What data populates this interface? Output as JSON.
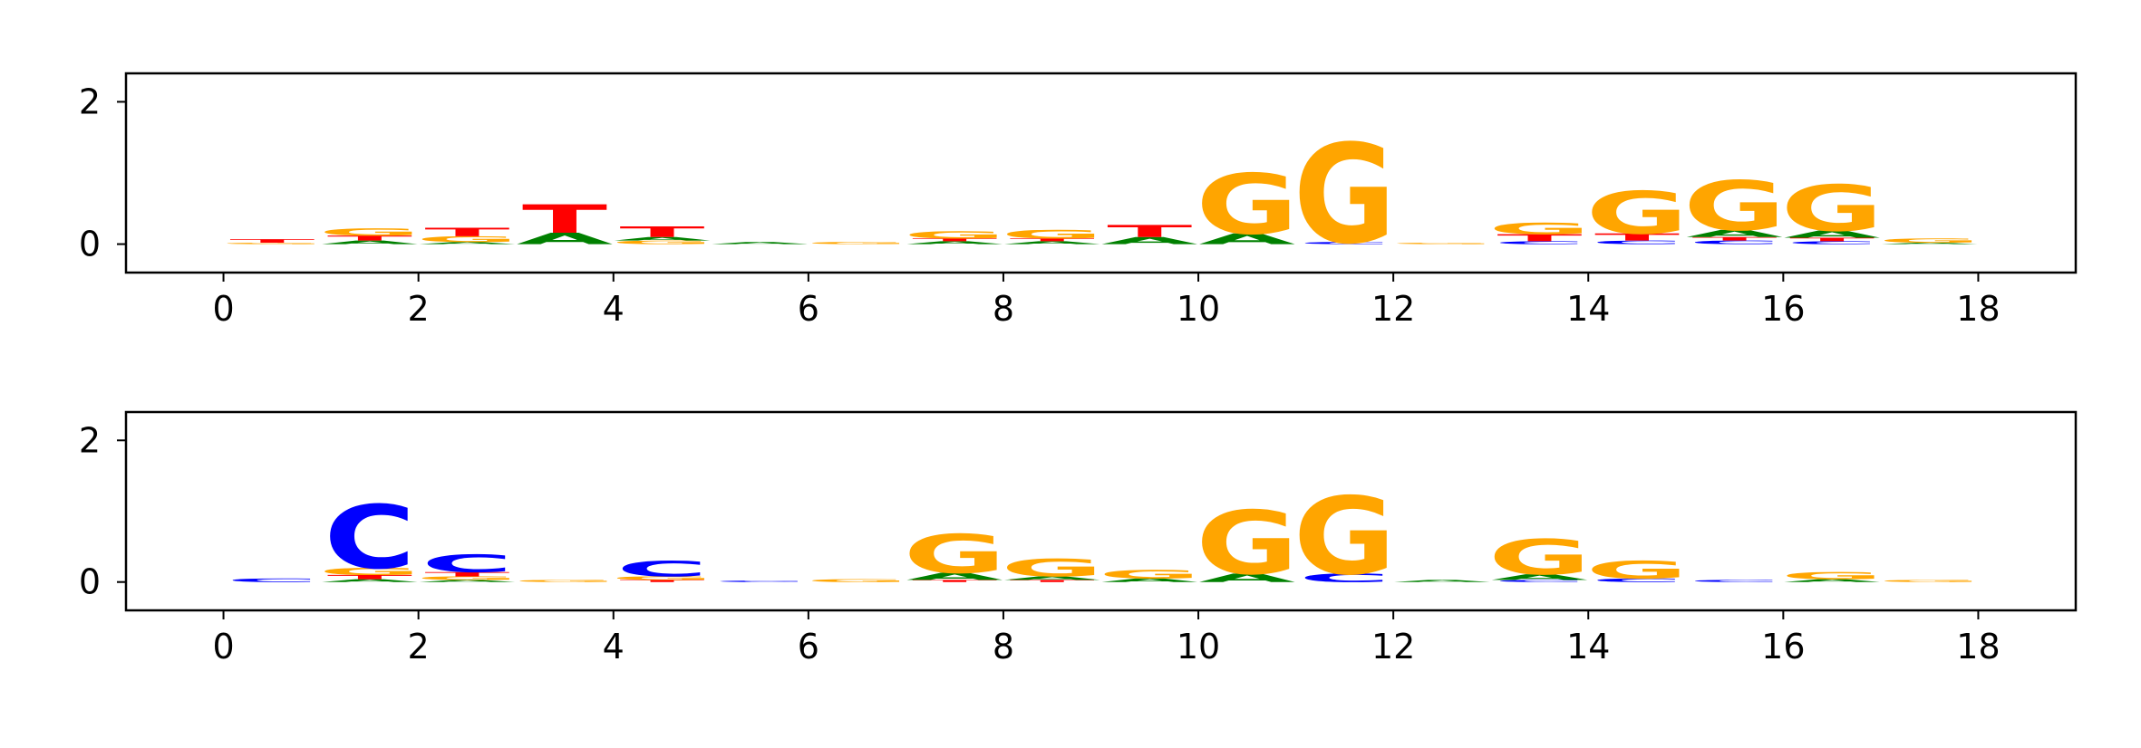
{
  "colors": {
    "A": "#008000",
    "C": "#0000ff",
    "G": "#ffa500",
    "T": "#ff0000",
    "axis": "#000000",
    "background": "#ffffff"
  },
  "chart_data": [
    {
      "type": "sequence-logo",
      "xlim": [
        -1,
        19
      ],
      "ylim": [
        -0.4,
        2.4
      ],
      "xticks": [
        0,
        2,
        4,
        6,
        8,
        10,
        12,
        14,
        16,
        18
      ],
      "yticks": [
        0,
        2
      ],
      "positions": [
        {
          "x": 0,
          "letters": [
            {
              "base": "G",
              "height": 0.02
            },
            {
              "base": "T",
              "height": 0.05
            }
          ]
        },
        {
          "x": 1,
          "letters": [
            {
              "base": "A",
              "height": 0.05
            },
            {
              "base": "T",
              "height": 0.07
            },
            {
              "base": "G",
              "height": 0.1
            }
          ]
        },
        {
          "x": 2,
          "letters": [
            {
              "base": "A",
              "height": 0.03
            },
            {
              "base": "G",
              "height": 0.08
            },
            {
              "base": "T",
              "height": 0.12
            }
          ]
        },
        {
          "x": 3,
          "letters": [
            {
              "base": "A",
              "height": 0.16
            },
            {
              "base": "T",
              "height": 0.4
            }
          ]
        },
        {
          "x": 4,
          "letters": [
            {
              "base": "G",
              "height": 0.05
            },
            {
              "base": "A",
              "height": 0.05
            },
            {
              "base": "T",
              "height": 0.15
            }
          ]
        },
        {
          "x": 5,
          "letters": [
            {
              "base": "A",
              "height": 0.03
            }
          ]
        },
        {
          "x": 6,
          "letters": [
            {
              "base": "G",
              "height": 0.03
            }
          ]
        },
        {
          "x": 7,
          "letters": [
            {
              "base": "A",
              "height": 0.04
            },
            {
              "base": "T",
              "height": 0.04
            },
            {
              "base": "G",
              "height": 0.1
            }
          ]
        },
        {
          "x": 8,
          "letters": [
            {
              "base": "A",
              "height": 0.04
            },
            {
              "base": "T",
              "height": 0.04
            },
            {
              "base": "G",
              "height": 0.12
            }
          ]
        },
        {
          "x": 9,
          "letters": [
            {
              "base": "A",
              "height": 0.1
            },
            {
              "base": "T",
              "height": 0.17
            }
          ]
        },
        {
          "x": 10,
          "letters": [
            {
              "base": "A",
              "height": 0.15
            },
            {
              "base": "G",
              "height": 0.85
            }
          ]
        },
        {
          "x": 11,
          "letters": [
            {
              "base": "C",
              "height": 0.03
            },
            {
              "base": "G",
              "height": 1.4
            }
          ]
        },
        {
          "x": 12,
          "letters": [
            {
              "base": "G",
              "height": 0.02
            }
          ]
        },
        {
          "x": 13,
          "letters": [
            {
              "base": "C",
              "height": 0.04
            },
            {
              "base": "T",
              "height": 0.1
            },
            {
              "base": "G",
              "height": 0.16
            }
          ]
        },
        {
          "x": 14,
          "letters": [
            {
              "base": "C",
              "height": 0.05
            },
            {
              "base": "T",
              "height": 0.1
            },
            {
              "base": "G",
              "height": 0.6
            }
          ]
        },
        {
          "x": 15,
          "letters": [
            {
              "base": "C",
              "height": 0.05
            },
            {
              "base": "T",
              "height": 0.05
            },
            {
              "base": "A",
              "height": 0.1
            },
            {
              "base": "G",
              "height": 0.7
            }
          ]
        },
        {
          "x": 16,
          "letters": [
            {
              "base": "C",
              "height": 0.04
            },
            {
              "base": "T",
              "height": 0.05
            },
            {
              "base": "A",
              "height": 0.1
            },
            {
              "base": "G",
              "height": 0.65
            }
          ]
        },
        {
          "x": 17,
          "letters": [
            {
              "base": "A",
              "height": 0.02
            },
            {
              "base": "G",
              "height": 0.06
            }
          ]
        }
      ]
    },
    {
      "type": "sequence-logo",
      "xlim": [
        -1,
        19
      ],
      "ylim": [
        -0.4,
        2.4
      ],
      "xticks": [
        0,
        2,
        4,
        6,
        8,
        10,
        12,
        14,
        16,
        18
      ],
      "yticks": [
        0,
        2
      ],
      "positions": [
        {
          "x": 0,
          "letters": [
            {
              "base": "C",
              "height": 0.05
            }
          ]
        },
        {
          "x": 1,
          "letters": [
            {
              "base": "A",
              "height": 0.04
            },
            {
              "base": "T",
              "height": 0.06
            },
            {
              "base": "G",
              "height": 0.1
            },
            {
              "base": "C",
              "height": 0.9
            }
          ]
        },
        {
          "x": 2,
          "letters": [
            {
              "base": "A",
              "height": 0.03
            },
            {
              "base": "G",
              "height": 0.05
            },
            {
              "base": "T",
              "height": 0.06
            },
            {
              "base": "C",
              "height": 0.25
            }
          ]
        },
        {
          "x": 3,
          "letters": [
            {
              "base": "G",
              "height": 0.03
            }
          ]
        },
        {
          "x": 4,
          "letters": [
            {
              "base": "T",
              "height": 0.03
            },
            {
              "base": "G",
              "height": 0.05
            },
            {
              "base": "C",
              "height": 0.22
            }
          ]
        },
        {
          "x": 5,
          "letters": [
            {
              "base": "C",
              "height": 0.02
            }
          ]
        },
        {
          "x": 6,
          "letters": [
            {
              "base": "G",
              "height": 0.04
            }
          ]
        },
        {
          "x": 7,
          "letters": [
            {
              "base": "T",
              "height": 0.03
            },
            {
              "base": "A",
              "height": 0.1
            },
            {
              "base": "G",
              "height": 0.55
            }
          ]
        },
        {
          "x": 8,
          "letters": [
            {
              "base": "T",
              "height": 0.03
            },
            {
              "base": "A",
              "height": 0.05
            },
            {
              "base": "G",
              "height": 0.25
            }
          ]
        },
        {
          "x": 9,
          "letters": [
            {
              "base": "A",
              "height": 0.05
            },
            {
              "base": "G",
              "height": 0.12
            }
          ]
        },
        {
          "x": 10,
          "letters": [
            {
              "base": "A",
              "height": 0.12
            },
            {
              "base": "G",
              "height": 0.9
            }
          ]
        },
        {
          "x": 11,
          "letters": [
            {
              "base": "C",
              "height": 0.12
            },
            {
              "base": "G",
              "height": 1.1
            }
          ]
        },
        {
          "x": 12,
          "letters": [
            {
              "base": "A",
              "height": 0.03
            }
          ]
        },
        {
          "x": 13,
          "letters": [
            {
              "base": "C",
              "height": 0.03
            },
            {
              "base": "A",
              "height": 0.08
            },
            {
              "base": "G",
              "height": 0.5
            }
          ]
        },
        {
          "x": 14,
          "letters": [
            {
              "base": "C",
              "height": 0.05
            },
            {
              "base": "G",
              "height": 0.25
            }
          ]
        },
        {
          "x": 15,
          "letters": [
            {
              "base": "C",
              "height": 0.03
            }
          ]
        },
        {
          "x": 16,
          "letters": [
            {
              "base": "A",
              "height": 0.04
            },
            {
              "base": "G",
              "height": 0.1
            }
          ]
        },
        {
          "x": 17,
          "letters": [
            {
              "base": "G",
              "height": 0.03
            }
          ]
        }
      ]
    }
  ]
}
